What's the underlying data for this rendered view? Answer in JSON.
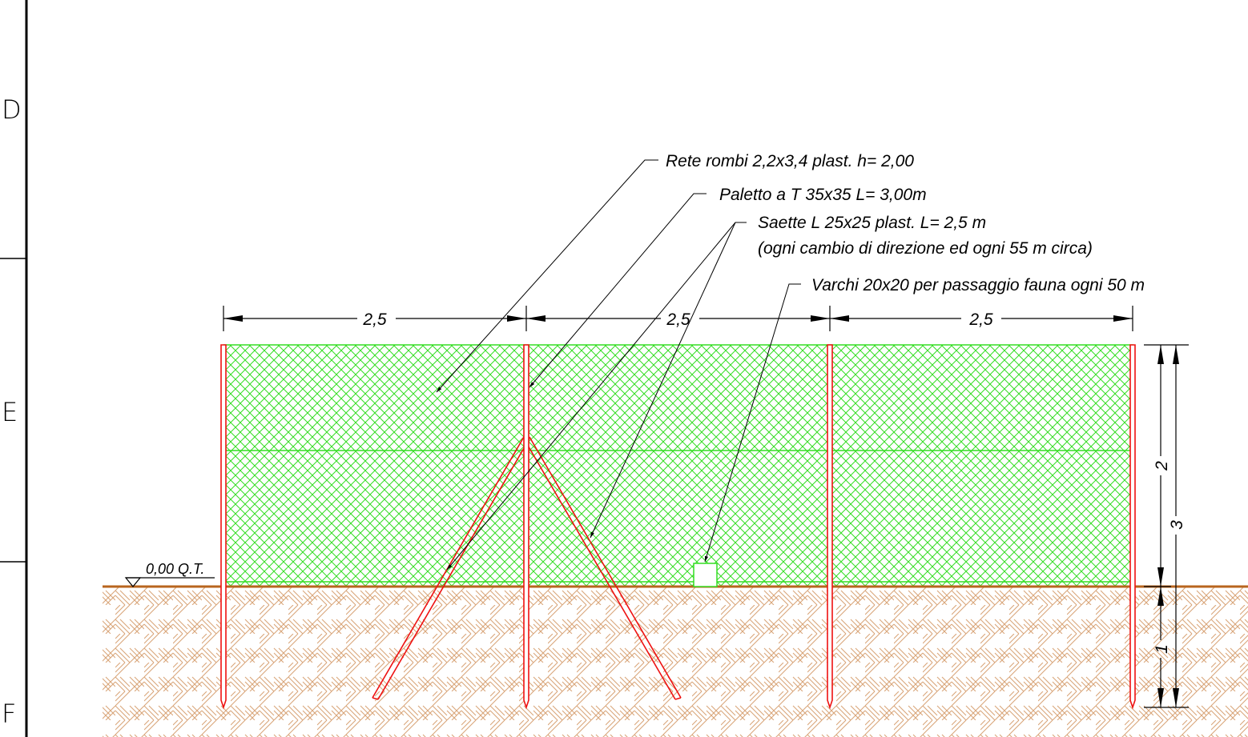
{
  "frame": {
    "row_labels": [
      "D",
      "E",
      "F"
    ]
  },
  "notes": {
    "rete": "Rete rombi 2,2x3,4 plast. h= 2,00",
    "paletto": "Paletto a T 35x35 L= 3,00m",
    "saette_line1": "Saette L 25x25 plast. L= 2,5 m",
    "saette_line2": "(ogni cambio di direzione ed ogni 55 m circa)",
    "varchi": "Varchi 20x20 per passaggio fauna ogni 50 m"
  },
  "dimensions": {
    "span_1": "2,5",
    "span_2": "2,5",
    "span_3": "2,5",
    "net_height": "2",
    "post_length": "3",
    "embedment": "1"
  },
  "ground_level": "0,00 Q.T.",
  "colors": {
    "mesh": "#33dd22",
    "post": "#ee1111",
    "ground_line": "#b8651e",
    "soil_hatch": "#d9a67a",
    "frame": "#000000"
  }
}
